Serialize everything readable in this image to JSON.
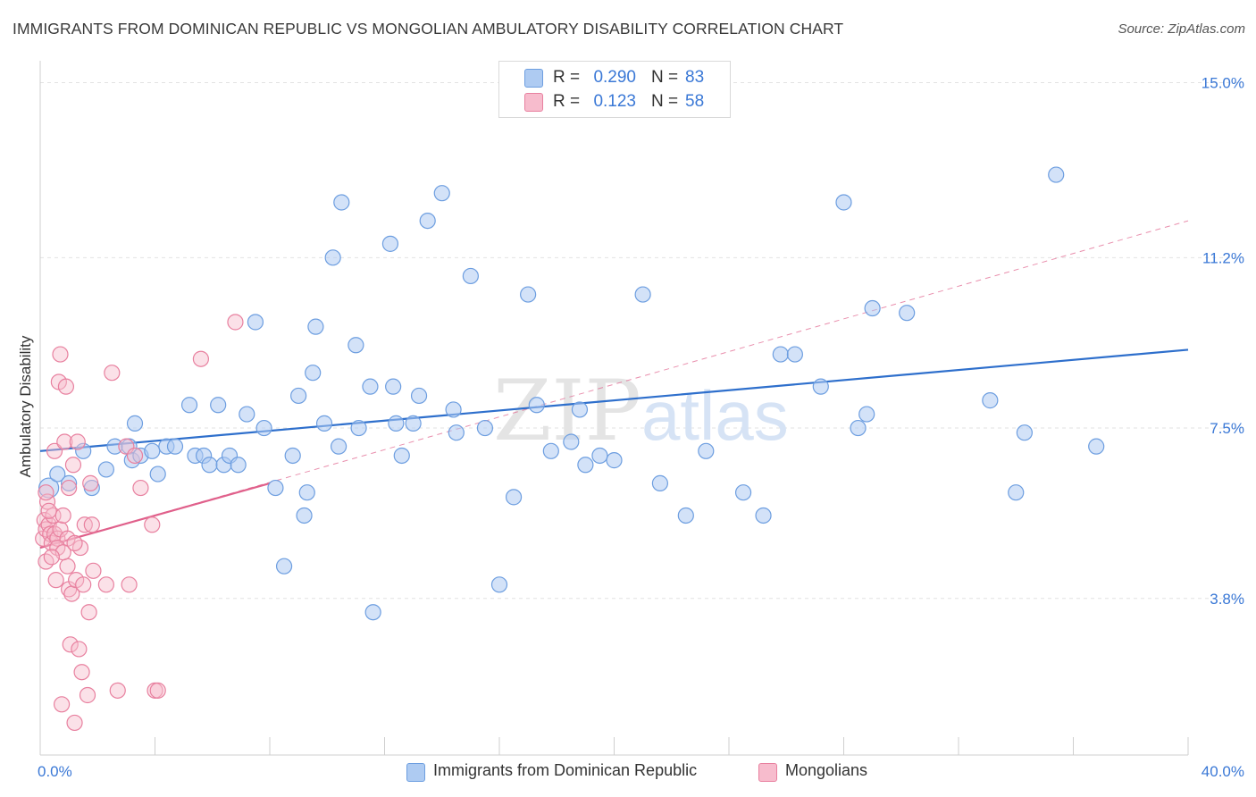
{
  "title": "IMMIGRANTS FROM DOMINICAN REPUBLIC VS MONGOLIAN AMBULATORY DISABILITY CORRELATION CHART",
  "source": "Source: ZipAtlas.com",
  "watermark": {
    "zip": "ZIP",
    "atlas": "atlas"
  },
  "colors": {
    "blue_fill": "#aecbf2",
    "blue_stroke": "#6d9ee0",
    "blue_line": "#2e6fcc",
    "pink_fill": "#f7bccd",
    "pink_stroke": "#e8809f",
    "pink_line": "#e0608b",
    "tick_text": "#3a78d6",
    "grid": "#e2e2e2"
  },
  "legend_top": {
    "rows": [
      {
        "r_label": "R =",
        "r_value": "0.290",
        "n_label": "N =",
        "n_value": "83"
      },
      {
        "r_label": "R =",
        "r_value": "0.123",
        "n_label": "N =",
        "n_value": "58"
      }
    ]
  },
  "legend_bottom": [
    "Immigrants from Dominican Republic",
    "Mongolians"
  ],
  "chart_data": {
    "type": "scatter",
    "ylabel": "Ambulatory Disability",
    "xlim": [
      0,
      40
    ],
    "ylim": [
      0.4,
      15.3
    ],
    "x_tick_labels": [
      {
        "value": 0,
        "label": "0.0%"
      },
      {
        "value": 40,
        "label": "40.0%"
      }
    ],
    "y_tick_labels": [
      {
        "value": 15.0,
        "label": "15.0%"
      },
      {
        "value": 11.2,
        "label": "11.2%"
      },
      {
        "value": 7.5,
        "label": "7.5%"
      },
      {
        "value": 3.8,
        "label": "3.8%"
      }
    ],
    "x_minor_ticks": [
      4,
      8,
      12,
      16,
      20,
      24,
      28,
      32,
      36,
      40
    ],
    "grid": true,
    "series": [
      {
        "name": "Immigrants from Dominican Republic",
        "trend": {
          "x": [
            0,
            40
          ],
          "y": [
            7.0,
            9.2
          ]
        },
        "points": [
          [
            0.3,
            6.2
          ],
          [
            0.6,
            6.5
          ],
          [
            1.0,
            6.3
          ],
          [
            1.5,
            7.0
          ],
          [
            1.8,
            6.2
          ],
          [
            2.3,
            6.6
          ],
          [
            2.6,
            7.1
          ],
          [
            3.1,
            7.1
          ],
          [
            3.2,
            6.8
          ],
          [
            3.3,
            7.6
          ],
          [
            3.5,
            6.9
          ],
          [
            3.9,
            7.0
          ],
          [
            4.1,
            6.5
          ],
          [
            4.4,
            7.1
          ],
          [
            4.7,
            7.1
          ],
          [
            5.2,
            8.0
          ],
          [
            5.4,
            6.9
          ],
          [
            5.7,
            6.9
          ],
          [
            5.9,
            6.7
          ],
          [
            6.2,
            8.0
          ],
          [
            6.4,
            6.7
          ],
          [
            6.6,
            6.9
          ],
          [
            6.9,
            6.7
          ],
          [
            7.2,
            7.8
          ],
          [
            7.5,
            9.8
          ],
          [
            7.8,
            7.5
          ],
          [
            8.2,
            6.2
          ],
          [
            8.5,
            4.5
          ],
          [
            8.8,
            6.9
          ],
          [
            9.0,
            8.2
          ],
          [
            9.2,
            5.6
          ],
          [
            9.3,
            6.1
          ],
          [
            9.5,
            8.7
          ],
          [
            9.6,
            9.7
          ],
          [
            10.2,
            11.2
          ],
          [
            10.4,
            7.1
          ],
          [
            10.5,
            12.4
          ],
          [
            11.0,
            9.3
          ],
          [
            11.1,
            7.5
          ],
          [
            11.5,
            8.4
          ],
          [
            11.6,
            3.5
          ],
          [
            12.2,
            11.5
          ],
          [
            12.3,
            8.4
          ],
          [
            12.4,
            7.6
          ],
          [
            12.6,
            6.9
          ],
          [
            13.0,
            7.6
          ],
          [
            13.2,
            8.2
          ],
          [
            13.5,
            12.0
          ],
          [
            14.0,
            12.6
          ],
          [
            14.4,
            7.9
          ],
          [
            14.5,
            7.4
          ],
          [
            15.0,
            10.8
          ],
          [
            16.0,
            4.1
          ],
          [
            16.5,
            6.0
          ],
          [
            17.0,
            10.4
          ],
          [
            17.3,
            8.0
          ],
          [
            17.8,
            7.0
          ],
          [
            18.5,
            7.2
          ],
          [
            18.8,
            7.9
          ],
          [
            19.0,
            6.7
          ],
          [
            20.0,
            6.8
          ],
          [
            21.0,
            10.4
          ],
          [
            21.6,
            6.3
          ],
          [
            22.5,
            5.6
          ],
          [
            24.5,
            6.1
          ],
          [
            25.2,
            5.6
          ],
          [
            25.8,
            9.1
          ],
          [
            26.3,
            9.1
          ],
          [
            27.2,
            8.4
          ],
          [
            28.0,
            12.4
          ],
          [
            28.5,
            7.5
          ],
          [
            28.8,
            7.8
          ],
          [
            29.0,
            10.1
          ],
          [
            30.2,
            10.0
          ],
          [
            33.1,
            8.1
          ],
          [
            34.0,
            6.1
          ],
          [
            34.3,
            7.4
          ],
          [
            35.4,
            13.0
          ],
          [
            36.8,
            7.1
          ],
          [
            9.9,
            7.6
          ],
          [
            15.5,
            7.5
          ],
          [
            19.5,
            6.9
          ],
          [
            23.2,
            7.0
          ]
        ]
      },
      {
        "name": "Mongolians",
        "trend": {
          "x": [
            0,
            8
          ],
          "y": [
            4.9,
            6.3
          ]
        },
        "trend_extended": {
          "x": [
            0,
            40
          ],
          "y": [
            4.9,
            12.0
          ]
        },
        "points": [
          [
            0.1,
            5.1
          ],
          [
            0.15,
            5.5
          ],
          [
            0.2,
            4.6
          ],
          [
            0.2,
            5.3
          ],
          [
            0.25,
            5.9
          ],
          [
            0.3,
            5.4
          ],
          [
            0.35,
            5.2
          ],
          [
            0.4,
            5.0
          ],
          [
            0.45,
            5.6
          ],
          [
            0.5,
            7.0
          ],
          [
            0.5,
            5.2
          ],
          [
            0.55,
            4.2
          ],
          [
            0.6,
            5.1
          ],
          [
            0.65,
            8.5
          ],
          [
            0.7,
            9.1
          ],
          [
            0.7,
            5.3
          ],
          [
            0.75,
            1.5
          ],
          [
            0.8,
            5.6
          ],
          [
            0.85,
            7.2
          ],
          [
            0.9,
            8.4
          ],
          [
            0.95,
            4.5
          ],
          [
            0.95,
            5.1
          ],
          [
            1.0,
            4.0
          ],
          [
            1.0,
            6.2
          ],
          [
            1.05,
            2.8
          ],
          [
            1.1,
            3.9
          ],
          [
            1.15,
            6.7
          ],
          [
            1.2,
            1.1
          ],
          [
            1.25,
            4.2
          ],
          [
            1.3,
            7.2
          ],
          [
            1.35,
            2.7
          ],
          [
            1.4,
            4.9
          ],
          [
            1.45,
            2.2
          ],
          [
            1.5,
            4.1
          ],
          [
            1.55,
            5.4
          ],
          [
            1.65,
            1.7
          ],
          [
            1.7,
            3.5
          ],
          [
            1.75,
            6.3
          ],
          [
            1.8,
            5.4
          ],
          [
            1.85,
            4.4
          ],
          [
            2.3,
            4.1
          ],
          [
            2.5,
            8.7
          ],
          [
            2.7,
            1.8
          ],
          [
            3.0,
            7.1
          ],
          [
            3.1,
            4.1
          ],
          [
            3.3,
            6.9
          ],
          [
            3.5,
            6.2
          ],
          [
            3.9,
            5.4
          ],
          [
            4.0,
            1.8
          ],
          [
            4.1,
            1.8
          ],
          [
            5.6,
            9.0
          ],
          [
            6.8,
            9.8
          ],
          [
            0.6,
            4.9
          ],
          [
            0.8,
            4.8
          ],
          [
            0.4,
            4.7
          ],
          [
            0.3,
            5.7
          ],
          [
            1.2,
            5.0
          ],
          [
            0.2,
            6.1
          ]
        ]
      }
    ]
  }
}
